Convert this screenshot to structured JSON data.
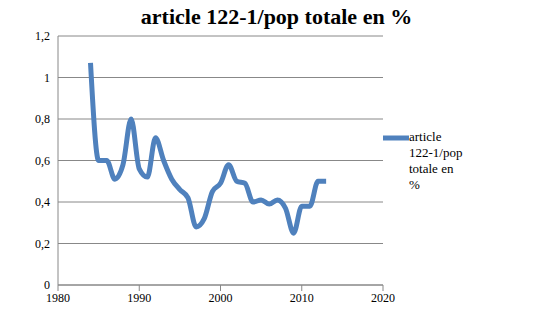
{
  "chart_data": {
    "type": "line",
    "title": "article 122-1/pop totale en %",
    "x": [
      1984,
      1985,
      1986,
      1987,
      1988,
      1989,
      1990,
      1991,
      1992,
      1993,
      1994,
      1995,
      1996,
      1997,
      1998,
      1999,
      2000,
      2001,
      2002,
      2003,
      2004,
      2005,
      2006,
      2007,
      2008,
      2009,
      2010,
      2011,
      2012,
      2013
    ],
    "series": [
      {
        "name": "article 122-1/pop totale en %",
        "color": "#4f81bd",
        "values": [
          1.07,
          0.6,
          0.6,
          0.51,
          0.58,
          0.8,
          0.56,
          0.52,
          0.71,
          0.6,
          0.51,
          0.46,
          0.42,
          0.28,
          0.32,
          0.45,
          0.49,
          0.58,
          0.5,
          0.49,
          0.4,
          0.41,
          0.39,
          0.41,
          0.37,
          0.25,
          0.38,
          0.38,
          0.5,
          0.5
        ]
      }
    ],
    "xlim": [
      1980,
      2020
    ],
    "xticks": [
      1980,
      1990,
      2000,
      2010,
      2020
    ],
    "ylim": [
      0,
      1.2
    ],
    "yticks": [
      0,
      {
        "value": 0.2,
        "label": "0,2"
      },
      {
        "value": 0.4,
        "label": "0,4"
      },
      {
        "value": 0.6,
        "label": "0,6"
      },
      {
        "value": 0.8,
        "label": "0,8"
      },
      1,
      {
        "value": 1.2,
        "label": "1,2"
      }
    ],
    "grid": true,
    "legend": "right"
  }
}
